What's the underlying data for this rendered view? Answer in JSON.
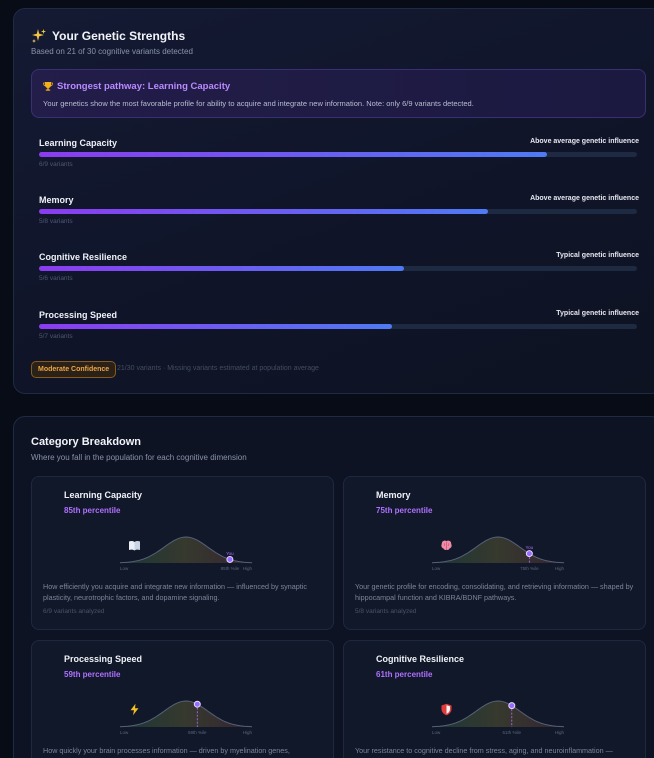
{
  "strengths": {
    "title": "Your Genetic Strengths",
    "subtitle": "Based on 21 of 30 cognitive variants detected",
    "pathway": {
      "title": "Strongest pathway: Learning Capacity",
      "description": "Your genetics show the most favorable profile for ability to acquire and integrate new information. Note: only 6/9 variants detected."
    },
    "traits": [
      {
        "name": "Learning Capacity",
        "badge": "Above average genetic influence",
        "level": "above",
        "fill_percent": 85,
        "variants": "6/9 variants"
      },
      {
        "name": "Memory",
        "badge": "Above average genetic influence",
        "level": "above",
        "fill_percent": 75,
        "variants": "5/8 variants"
      },
      {
        "name": "Cognitive Resilience",
        "badge": "Typical genetic influence",
        "level": "typical",
        "fill_percent": 61,
        "variants": "5/6 variants"
      },
      {
        "name": "Processing Speed",
        "badge": "Typical genetic influence",
        "level": "typical",
        "fill_percent": 59,
        "variants": "5/7 variants"
      }
    ],
    "confidence_label": "Moderate Confidence",
    "confidence_note": "21/30 variants · Missing variants estimated at population average"
  },
  "breakdown": {
    "title": "Category Breakdown",
    "subtitle": "Where you fall in the population for each cognitive dimension",
    "categories": [
      {
        "name": "Learning Capacity",
        "icon": "book-icon",
        "percentile_label": "85th percentile",
        "percentile": 85,
        "marker_label": "You",
        "axis_low": "Low",
        "axis_mid": "85th %ile",
        "axis_high": "High",
        "description": "How efficiently you acquire and integrate new information — influenced by synaptic plasticity, neurotrophic factors, and dopamine signaling.",
        "variants": "6/9 variants analyzed"
      },
      {
        "name": "Memory",
        "icon": "brain-icon",
        "percentile_label": "75th percentile",
        "percentile": 75,
        "marker_label": "You",
        "axis_low": "Low",
        "axis_mid": "75th %ile",
        "axis_high": "High",
        "description": "Your genetic profile for encoding, consolidating, and retrieving information — shaped by hippocampal function and KIBRA/BDNF pathways.",
        "variants": "5/8 variants analyzed"
      },
      {
        "name": "Processing Speed",
        "icon": "lightning-icon",
        "percentile_label": "59th percentile",
        "percentile": 59,
        "marker_label": "",
        "axis_low": "Low",
        "axis_mid": "59th %ile",
        "axis_high": "High",
        "description": "How quickly your brain processes information — driven by myelination genes,",
        "variants": ""
      },
      {
        "name": "Cognitive Resilience",
        "icon": "shield-icon",
        "percentile_label": "61th percentile",
        "percentile": 61,
        "marker_label": "",
        "axis_low": "Low",
        "axis_mid": "61th %ile",
        "axis_high": "High",
        "description": "Your resistance to cognitive decline from stress, aging, and neuroinflammation —",
        "variants": ""
      }
    ]
  },
  "colors": {
    "accent_purple": "#8b3cf0",
    "accent_blue": "#4f7af4",
    "above_green": "#3ed39a",
    "typical_blue": "#5ba3ff",
    "confidence_orange": "#f0a443"
  }
}
